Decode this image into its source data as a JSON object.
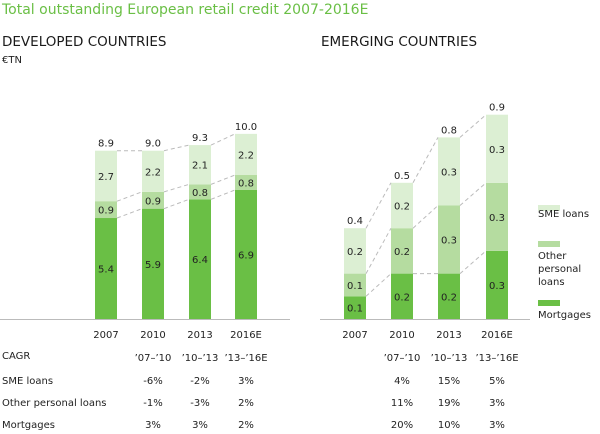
{
  "title": "Total outstanding European retail credit 2007-2016E",
  "colors": {
    "title": "#6abf45",
    "SME loans": "#dcefd3",
    "Other personal loans": "#b5dca0",
    "Mortgages": "#6abf45"
  },
  "legend": [
    {
      "key": "SME loans",
      "label": "SME loans"
    },
    {
      "key": "Other personal loans",
      "label": "Other personal loans"
    },
    {
      "key": "Mortgages",
      "label": "Mortgages"
    }
  ],
  "chart_data": [
    {
      "type": "bar",
      "stacked": true,
      "title": "DEVELOPED COUNTRIES",
      "ylabel": "€TN",
      "categories": [
        "2007",
        "2010",
        "2013",
        "2016E"
      ],
      "series": [
        {
          "name": "Mortgages",
          "values": [
            5.4,
            5.9,
            6.4,
            6.9
          ]
        },
        {
          "name": "Other personal loans",
          "values": [
            0.9,
            0.9,
            0.8,
            0.8
          ]
        },
        {
          "name": "SME loans",
          "values": [
            2.7,
            2.2,
            2.1,
            2.2
          ]
        }
      ],
      "totals": [
        "8.9",
        "9.0",
        "9.3",
        "10.0"
      ],
      "cagr": {
        "header": [
          "’07–’10",
          "’10–’13",
          "’13–’16E"
        ],
        "rows": [
          {
            "label": "SME loans",
            "values": [
              "-6%",
              "-2%",
              "3%"
            ]
          },
          {
            "label": "Other personal loans",
            "values": [
              "-1%",
              "-3%",
              "2%"
            ]
          },
          {
            "label": "Mortgages",
            "values": [
              "3%",
              "3%",
              "2%"
            ]
          }
        ]
      }
    },
    {
      "type": "bar",
      "stacked": true,
      "title": "EMERGING COUNTRIES",
      "categories": [
        "2007",
        "2010",
        "2013",
        "2016E"
      ],
      "series": [
        {
          "name": "Mortgages",
          "values": [
            0.1,
            0.2,
            0.2,
            0.3
          ]
        },
        {
          "name": "Other personal loans",
          "values": [
            0.1,
            0.2,
            0.3,
            0.3
          ]
        },
        {
          "name": "SME loans",
          "values": [
            0.2,
            0.2,
            0.3,
            0.3
          ]
        }
      ],
      "totals": [
        "0.4",
        "0.5",
        "0.8",
        "0.9"
      ],
      "cagr": {
        "header": [
          "’07–’10",
          "’10–’13",
          "’13–’16E"
        ],
        "rows": [
          {
            "label": "SME loans",
            "values": [
              "4%",
              "15%",
              "5%"
            ]
          },
          {
            "label": "Other personal loans",
            "values": [
              "11%",
              "19%",
              "3%"
            ]
          },
          {
            "label": "Mortgages",
            "values": [
              "20%",
              "10%",
              "3%"
            ]
          }
        ]
      }
    }
  ],
  "table": {
    "cagr_label": "CAGR"
  }
}
